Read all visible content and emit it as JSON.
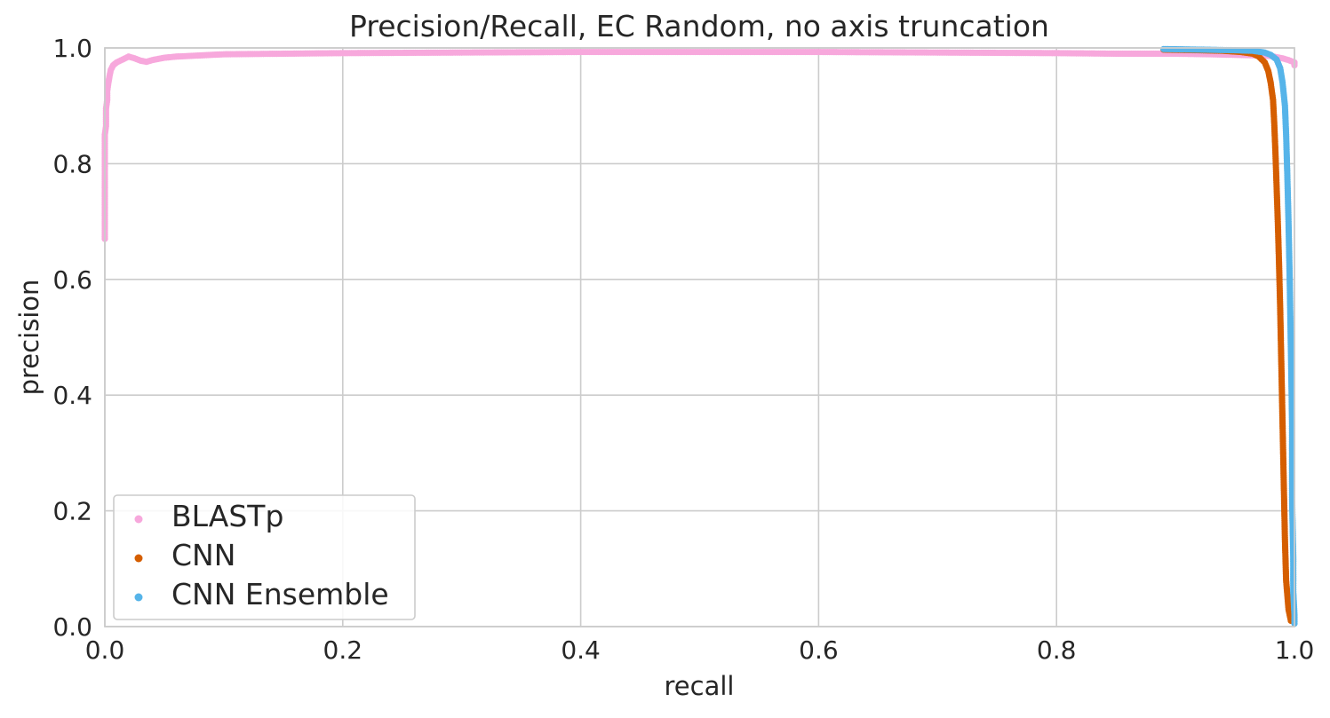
{
  "chart_data": {
    "type": "scatter",
    "title": "Precision/Recall, EC Random, no axis truncation",
    "xlabel": "recall",
    "ylabel": "precision",
    "xlim": [
      0.0,
      1.0
    ],
    "ylim": [
      0.0,
      1.0
    ],
    "xticks": [
      "0.0",
      "0.2",
      "0.4",
      "0.6",
      "0.8",
      "1.0"
    ],
    "yticks": [
      "0.0",
      "0.2",
      "0.4",
      "0.6",
      "0.8",
      "1.0"
    ],
    "grid": true,
    "legend_position": "lower-left",
    "series": [
      {
        "name": "BLASTp",
        "color": "#f7a8dc",
        "points": [
          [
            0.0,
            0.67
          ],
          [
            0.0,
            0.685
          ],
          [
            0.0,
            0.74
          ],
          [
            0.0,
            0.78
          ],
          [
            0.0,
            0.81
          ],
          [
            0.0,
            0.835
          ],
          [
            0.0,
            0.85
          ],
          [
            0.001,
            0.865
          ],
          [
            0.001,
            0.88
          ],
          [
            0.001,
            0.895
          ],
          [
            0.002,
            0.91
          ],
          [
            0.002,
            0.925
          ],
          [
            0.003,
            0.94
          ],
          [
            0.004,
            0.952
          ],
          [
            0.005,
            0.962
          ],
          [
            0.007,
            0.97
          ],
          [
            0.01,
            0.975
          ],
          [
            0.015,
            0.98
          ],
          [
            0.02,
            0.985
          ],
          [
            0.025,
            0.982
          ],
          [
            0.03,
            0.978
          ],
          [
            0.035,
            0.976
          ],
          [
            0.04,
            0.979
          ],
          [
            0.05,
            0.983
          ],
          [
            0.06,
            0.985
          ],
          [
            0.08,
            0.987
          ],
          [
            0.1,
            0.989
          ],
          [
            0.15,
            0.99
          ],
          [
            0.2,
            0.991
          ],
          [
            0.3,
            0.992
          ],
          [
            0.4,
            0.993
          ],
          [
            0.5,
            0.993
          ],
          [
            0.6,
            0.993
          ],
          [
            0.7,
            0.992
          ],
          [
            0.8,
            0.991
          ],
          [
            0.85,
            0.99
          ],
          [
            0.9,
            0.99
          ],
          [
            0.93,
            0.989
          ],
          [
            0.95,
            0.988
          ],
          [
            0.97,
            0.987
          ],
          [
            0.98,
            0.986
          ],
          [
            0.985,
            0.984
          ],
          [
            0.99,
            0.982
          ],
          [
            0.995,
            0.979
          ],
          [
            1.0,
            0.975
          ],
          [
            1.0,
            0.97
          ]
        ]
      },
      {
        "name": "CNN",
        "color": "#d55e00",
        "points": [
          [
            0.89,
            0.997
          ],
          [
            0.92,
            0.996
          ],
          [
            0.94,
            0.995
          ],
          [
            0.955,
            0.993
          ],
          [
            0.965,
            0.99
          ],
          [
            0.97,
            0.985
          ],
          [
            0.975,
            0.975
          ],
          [
            0.978,
            0.96
          ],
          [
            0.98,
            0.94
          ],
          [
            0.982,
            0.91
          ],
          [
            0.983,
            0.87
          ],
          [
            0.984,
            0.82
          ],
          [
            0.985,
            0.76
          ],
          [
            0.986,
            0.7
          ],
          [
            0.987,
            0.63
          ],
          [
            0.988,
            0.55
          ],
          [
            0.989,
            0.45
          ],
          [
            0.99,
            0.35
          ],
          [
            0.991,
            0.25
          ],
          [
            0.992,
            0.15
          ],
          [
            0.993,
            0.08
          ],
          [
            0.995,
            0.03
          ],
          [
            0.997,
            0.01
          ]
        ]
      },
      {
        "name": "CNN Ensemble",
        "color": "#56b4e9",
        "points": [
          [
            0.89,
            0.998
          ],
          [
            0.92,
            0.997
          ],
          [
            0.95,
            0.996
          ],
          [
            0.965,
            0.995
          ],
          [
            0.975,
            0.992
          ],
          [
            0.98,
            0.988
          ],
          [
            0.985,
            0.98
          ],
          [
            0.988,
            0.965
          ],
          [
            0.99,
            0.94
          ],
          [
            0.992,
            0.9
          ],
          [
            0.993,
            0.85
          ],
          [
            0.994,
            0.78
          ],
          [
            0.995,
            0.7
          ],
          [
            0.996,
            0.6
          ],
          [
            0.997,
            0.48
          ],
          [
            0.998,
            0.35
          ],
          [
            0.998,
            0.22
          ],
          [
            0.999,
            0.12
          ],
          [
            0.999,
            0.06
          ],
          [
            1.0,
            0.02
          ],
          [
            1.0,
            0.005
          ]
        ]
      }
    ]
  }
}
